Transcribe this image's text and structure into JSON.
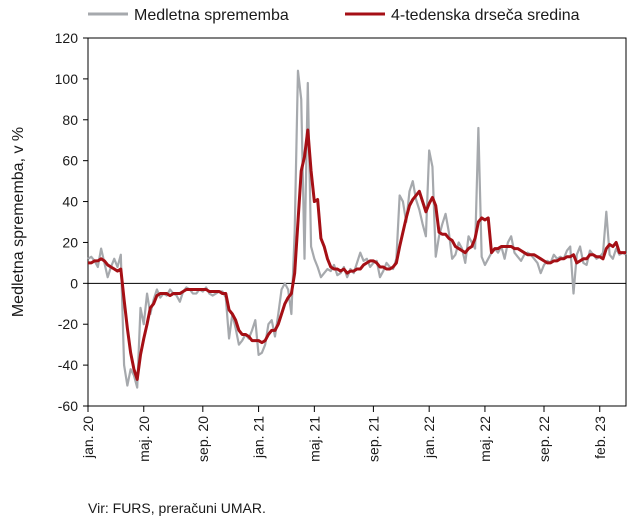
{
  "chart_data": {
    "type": "line",
    "ylabel": "Medletna sprememba, v %",
    "ylim": [
      -60,
      120
    ],
    "y_ticks": [
      "-60",
      "-40",
      "-20",
      "0",
      "20",
      "40",
      "60",
      "80",
      "100",
      "120"
    ],
    "x_tick_labels": [
      "jan. 20",
      "maj. 20",
      "sep. 20",
      "jan. 21",
      "maj. 21",
      "sep. 21",
      "jan. 22",
      "maj. 22",
      "sep. 22",
      "feb. 23"
    ],
    "x_tick_weeks": [
      0,
      17,
      35,
      52,
      69,
      87,
      104,
      121,
      139,
      156
    ],
    "x_range_weeks": [
      0,
      164
    ],
    "legend_position": "top",
    "grid": false,
    "colors": {
      "series1": "#a6a9ad",
      "series2": "#a50f15",
      "axis": "#000000",
      "frame": "#000000"
    },
    "series": [
      {
        "name": "Medletna sprememba",
        "values": [
          12,
          13,
          11,
          8,
          17,
          10,
          3,
          8,
          12,
          8,
          14,
          -40,
          -50,
          -42,
          -45,
          -51,
          -12,
          -20,
          -5,
          -15,
          -8,
          -3,
          -7,
          -5,
          -6,
          -3,
          -5,
          -6,
          -9,
          -4,
          -2,
          -3,
          -5,
          -5,
          -3,
          -4,
          -2,
          -5,
          -6,
          -5,
          -4,
          -4,
          -7,
          -27,
          -15,
          -22,
          -30,
          -28,
          -25,
          -27,
          -23,
          -18,
          -35,
          -34,
          -30,
          -20,
          -18,
          -26,
          -15,
          -3,
          0,
          -3,
          -15,
          25,
          104,
          90,
          12,
          98,
          18,
          12,
          8,
          3,
          5,
          7,
          6,
          9,
          4,
          5,
          8,
          3,
          7,
          5,
          10,
          15,
          11,
          12,
          8,
          10,
          11,
          3,
          6,
          10,
          8,
          7,
          12,
          43,
          40,
          30,
          45,
          50,
          41,
          36,
          29,
          23,
          65,
          57,
          13,
          23,
          29,
          34,
          25,
          12,
          14,
          20,
          17,
          10,
          23,
          20,
          17,
          76,
          13,
          9,
          12,
          15,
          17,
          15,
          18,
          12,
          20,
          23,
          15,
          13,
          11,
          14,
          15,
          14,
          12,
          10,
          5,
          9,
          11,
          10,
          14,
          12,
          13,
          12,
          16,
          18,
          -5,
          14,
          18,
          10,
          9,
          16,
          14,
          12,
          13,
          15,
          35,
          14,
          12,
          17,
          14,
          15,
          14
        ],
        "color": "#a6a9ad"
      },
      {
        "name": "4-tedenska drseča sredina",
        "values": [
          10,
          10,
          11,
          11,
          12,
          11,
          9,
          8,
          7,
          6,
          7,
          -8,
          -22,
          -34,
          -42,
          -47,
          -35,
          -27,
          -20,
          -12,
          -10,
          -6,
          -5,
          -5,
          -5,
          -6,
          -5,
          -5,
          -5,
          -4,
          -3,
          -3,
          -3,
          -3,
          -3,
          -3,
          -3,
          -4,
          -4,
          -4,
          -4,
          -5,
          -5,
          -13,
          -15,
          -18,
          -23,
          -25,
          -25,
          -26,
          -28,
          -28,
          -28,
          -29,
          -28,
          -25,
          -23,
          -23,
          -20,
          -15,
          -10,
          -7,
          -5,
          5,
          30,
          55,
          62,
          75,
          55,
          40,
          41,
          22,
          18,
          12,
          8,
          7,
          7,
          6,
          7,
          5,
          6,
          6,
          7,
          7,
          9,
          10,
          11,
          11,
          10,
          8,
          8,
          7,
          7,
          8,
          10,
          18,
          25,
          32,
          38,
          41,
          43,
          45,
          40,
          35,
          39,
          42,
          38,
          25,
          24,
          24,
          22,
          21,
          18,
          17,
          16,
          15,
          17,
          18,
          22,
          30,
          32,
          31,
          32,
          15,
          17,
          17,
          18,
          18,
          18,
          18,
          17,
          17,
          16,
          15,
          14,
          14,
          14,
          13,
          12,
          11,
          10,
          10,
          11,
          11,
          12,
          12,
          13,
          13,
          14,
          10,
          11,
          12,
          12,
          14,
          14,
          13,
          13,
          12,
          17,
          19,
          18,
          20,
          15,
          15,
          15
        ],
        "color": "#a50f15"
      }
    ]
  },
  "source_text": "Vir: FURS, preračuni UMAR."
}
